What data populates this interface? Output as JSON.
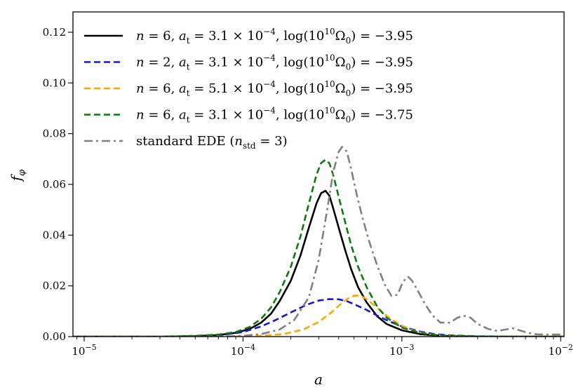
{
  "chart_data": {
    "type": "line",
    "title": "",
    "xlabel": "a",
    "ylabel": "f_φ",
    "xscale": "log",
    "xlim": [
      8.5e-06,
      0.0105
    ],
    "ylim": [
      0.0,
      0.128
    ],
    "x_ticks": [
      {
        "value": 1e-05,
        "base": "10",
        "exp": "−5"
      },
      {
        "value": 0.0001,
        "base": "10",
        "exp": "−4"
      },
      {
        "value": 0.001,
        "base": "10",
        "exp": "−3"
      },
      {
        "value": 0.01,
        "base": "10",
        "exp": "−2"
      }
    ],
    "y_ticks": [
      {
        "value": 0.0,
        "label": "0.00"
      },
      {
        "value": 0.02,
        "label": "0.02"
      },
      {
        "value": 0.04,
        "label": "0.04"
      },
      {
        "value": 0.06,
        "label": "0.06"
      },
      {
        "value": 0.08,
        "label": "0.08"
      },
      {
        "value": 0.1,
        "label": "0.10"
      },
      {
        "value": 0.12,
        "label": "0.12"
      }
    ],
    "grid": false,
    "legend_position": "top-left",
    "series": [
      {
        "name": "n = 6, a_t = 3.1 × 10⁻⁴, log(10¹⁰Ω₀) = −3.95",
        "label_parts": [
          [
            "n",
            "i"
          ],
          [
            " = 6, ",
            "r"
          ],
          [
            "a",
            "i"
          ],
          [
            "t",
            "sub"
          ],
          [
            " = 3.1 × 10",
            "r"
          ],
          [
            "−4",
            "sup"
          ],
          [
            ", log(10",
            "r"
          ],
          [
            "10",
            "sup"
          ],
          [
            "Ω",
            "r"
          ],
          [
            "0",
            "sub"
          ],
          [
            ") = −3.95",
            "r"
          ]
        ],
        "color": "#000000",
        "style": "solid",
        "x": [
          8e-06,
          3e-05,
          5e-05,
          7e-05,
          9e-05,
          0.00011,
          0.00013,
          0.00015,
          0.00017,
          0.0002,
          0.00023,
          0.00026,
          0.00029,
          0.00031,
          0.00033,
          0.00035,
          0.00037,
          0.0004,
          0.00044,
          0.00048,
          0.00053,
          0.0006,
          0.0007,
          0.0008,
          0.001,
          0.0013,
          0.0016,
          0.002,
          0.003,
          0.005,
          0.011
        ],
        "values": [
          0.0,
          0.0,
          0.0002,
          0.0006,
          0.0015,
          0.003,
          0.0055,
          0.009,
          0.014,
          0.022,
          0.032,
          0.043,
          0.0525,
          0.0565,
          0.0575,
          0.0555,
          0.0505,
          0.043,
          0.034,
          0.0265,
          0.0195,
          0.0135,
          0.008,
          0.005,
          0.0025,
          0.001,
          0.0005,
          0.0002,
          0.0,
          0.0,
          0.0
        ]
      },
      {
        "name": "n = 2, a_t = 3.1 × 10⁻⁴, log(10¹⁰Ω₀) = −3.95",
        "label_parts": [
          [
            "n",
            "i"
          ],
          [
            " = 2, ",
            "r"
          ],
          [
            "a",
            "i"
          ],
          [
            "t",
            "sub"
          ],
          [
            " = 3.1 × 10",
            "r"
          ],
          [
            "−4",
            "sup"
          ],
          [
            ", log(10",
            "r"
          ],
          [
            "10",
            "sup"
          ],
          [
            "Ω",
            "r"
          ],
          [
            "0",
            "sub"
          ],
          [
            ") = −3.95",
            "r"
          ]
        ],
        "color": "#1515e0",
        "style": "dashed",
        "x": [
          8e-06,
          3e-05,
          5e-05,
          7e-05,
          0.0001,
          0.00013,
          0.00016,
          0.0002,
          0.00025,
          0.0003,
          0.00035,
          0.0004,
          0.00045,
          0.0005,
          0.0006,
          0.0007,
          0.0008,
          0.001,
          0.0013,
          0.0016,
          0.002,
          0.003,
          0.005,
          0.011
        ],
        "values": [
          0.0,
          0.0,
          0.0001,
          0.0005,
          0.0018,
          0.004,
          0.0065,
          0.0095,
          0.0125,
          0.0142,
          0.0148,
          0.0147,
          0.014,
          0.0128,
          0.0105,
          0.0083,
          0.0065,
          0.004,
          0.002,
          0.001,
          0.0005,
          0.0001,
          0.0,
          0.0
        ]
      },
      {
        "name": "n = 6, a_t = 5.1 × 10⁻⁴, log(10¹⁰Ω₀) = −3.95",
        "label_parts": [
          [
            "n",
            "i"
          ],
          [
            " = 6, ",
            "r"
          ],
          [
            "a",
            "i"
          ],
          [
            "t",
            "sub"
          ],
          [
            " = 5.1 × 10",
            "r"
          ],
          [
            "−4",
            "sup"
          ],
          [
            ", log(10",
            "r"
          ],
          [
            "10",
            "sup"
          ],
          [
            "Ω",
            "r"
          ],
          [
            "0",
            "sub"
          ],
          [
            ") = −3.95",
            "r"
          ]
        ],
        "color": "#ffa500",
        "style": "dashed",
        "x": [
          8e-06,
          8e-05,
          0.00013,
          0.00018,
          0.00024,
          0.0003,
          0.00036,
          0.00042,
          0.00047,
          0.00051,
          0.00055,
          0.0006,
          0.00066,
          0.00074,
          0.00085,
          0.001,
          0.0012,
          0.0015,
          0.002,
          0.003,
          0.011
        ],
        "values": [
          0.0,
          0.0,
          0.0003,
          0.001,
          0.0028,
          0.0058,
          0.0095,
          0.0133,
          0.0155,
          0.0162,
          0.016,
          0.0148,
          0.0127,
          0.01,
          0.007,
          0.0043,
          0.0022,
          0.0009,
          0.0002,
          0.0,
          0.0
        ]
      },
      {
        "name": "n = 6, a_t = 3.1 × 10⁻⁴, log(10¹⁰Ω₀) = −3.75",
        "label_parts": [
          [
            "n",
            "i"
          ],
          [
            " = 6, ",
            "r"
          ],
          [
            "a",
            "i"
          ],
          [
            "t",
            "sub"
          ],
          [
            " = 3.1 × 10",
            "r"
          ],
          [
            "−4",
            "sup"
          ],
          [
            ", log(10",
            "r"
          ],
          [
            "10",
            "sup"
          ],
          [
            "Ω",
            "r"
          ],
          [
            "0",
            "sub"
          ],
          [
            ") = −3.75",
            "r"
          ]
        ],
        "color": "#0b7a0b",
        "style": "dashed",
        "x": [
          8e-06,
          3e-05,
          5e-05,
          7e-05,
          9e-05,
          0.00011,
          0.00013,
          0.00015,
          0.00017,
          0.0002,
          0.00023,
          0.00026,
          0.00029,
          0.00031,
          0.00033,
          0.00035,
          0.00037,
          0.0004,
          0.00044,
          0.00048,
          0.00053,
          0.0006,
          0.0007,
          0.0008,
          0.001,
          0.0013,
          0.0016,
          0.002,
          0.003,
          0.005,
          0.011
        ],
        "values": [
          0.0,
          0.0,
          0.0003,
          0.0008,
          0.0018,
          0.0038,
          0.007,
          0.0115,
          0.0175,
          0.0275,
          0.0395,
          0.0525,
          0.0638,
          0.0684,
          0.0697,
          0.0683,
          0.0637,
          0.0552,
          0.045,
          0.036,
          0.0275,
          0.0195,
          0.0118,
          0.0075,
          0.0035,
          0.0015,
          0.0007,
          0.0003,
          0.0001,
          0.0,
          0.0
        ]
      },
      {
        "name": "standard EDE (n_std = 3)",
        "label_parts": [
          [
            "standard EDE (",
            "r"
          ],
          [
            "n",
            "i"
          ],
          [
            "std",
            "sub"
          ],
          [
            " = 3)",
            "r"
          ]
        ],
        "color": "#808080",
        "style": "dashdot",
        "x": [
          8e-06,
          7e-05,
          0.0001,
          0.00013,
          0.00017,
          0.00021,
          0.00026,
          0.0003,
          0.00034,
          0.00037,
          0.0004,
          0.00042,
          0.00045,
          0.00048,
          0.00052,
          0.00057,
          0.00063,
          0.0007,
          0.00078,
          0.00086,
          0.00094,
          0.001,
          0.00106,
          0.0011,
          0.00116,
          0.00125,
          0.00138,
          0.00155,
          0.00175,
          0.002,
          0.00225,
          0.00245,
          0.0027,
          0.003,
          0.0035,
          0.004,
          0.0045,
          0.005,
          0.0055,
          0.0062,
          0.007,
          0.008,
          0.0095,
          0.011
        ],
        "values": [
          0.0,
          0.0,
          0.0003,
          0.001,
          0.0028,
          0.0065,
          0.0155,
          0.0305,
          0.0505,
          0.065,
          0.0728,
          0.0748,
          0.073,
          0.066,
          0.056,
          0.046,
          0.0365,
          0.028,
          0.0205,
          0.016,
          0.0165,
          0.0205,
          0.0232,
          0.0235,
          0.022,
          0.0185,
          0.0135,
          0.0085,
          0.0055,
          0.0055,
          0.0075,
          0.0082,
          0.0075,
          0.005,
          0.003,
          0.0022,
          0.0028,
          0.0033,
          0.0025,
          0.0015,
          0.0009,
          0.0008,
          0.0008,
          0.0008
        ]
      }
    ]
  }
}
